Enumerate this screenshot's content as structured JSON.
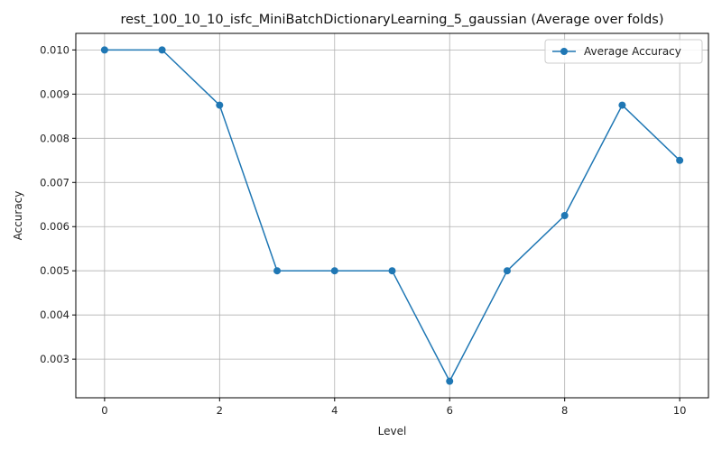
{
  "chart_data": {
    "type": "line",
    "title": "rest_100_10_10_isfc_MiniBatchDictionaryLearning_5_gaussian (Average over folds)",
    "xlabel": "Level",
    "ylabel": "Accuracy",
    "x": [
      0,
      1,
      2,
      3,
      4,
      5,
      6,
      7,
      8,
      9,
      10
    ],
    "series": [
      {
        "name": "Average Accuracy",
        "color": "#1f77b4",
        "marker": "circle",
        "values": [
          0.01,
          0.01,
          0.00875,
          0.005,
          0.005,
          0.005,
          0.0025,
          0.005,
          0.00625,
          0.00875,
          0.0075
        ]
      }
    ],
    "xlim": [
      -0.5,
      10.5
    ],
    "ylim": [
      0.002125,
      0.010375
    ],
    "xticks": [
      0,
      2,
      4,
      6,
      8,
      10
    ],
    "xtick_labels": [
      "0",
      "2",
      "4",
      "6",
      "8",
      "10"
    ],
    "yticks": [
      0.003,
      0.004,
      0.005,
      0.006,
      0.007,
      0.008,
      0.009,
      0.01
    ],
    "ytick_labels": [
      "0.003",
      "0.004",
      "0.005",
      "0.006",
      "0.007",
      "0.008",
      "0.009",
      "0.010"
    ],
    "grid": true,
    "legend_position": "top-right"
  }
}
